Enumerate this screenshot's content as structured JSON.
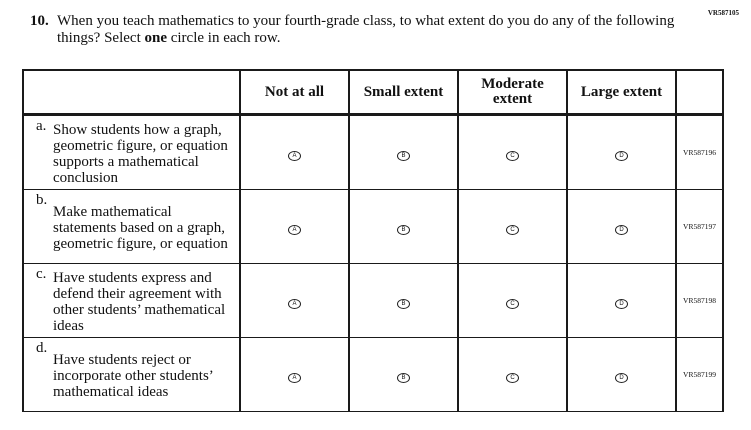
{
  "question_id": "VR587105",
  "question_number": "10.",
  "question_text_before": "When you teach mathematics to your fourth-grade class, to what extent do you do any of the following things? Select ",
  "question_text_bold": "one",
  "question_text_after": " circle in each row.",
  "columns": [
    "Not at all",
    "Small extent",
    "Moderate extent",
    "Large extent"
  ],
  "bubble_letters": [
    "A",
    "B",
    "C",
    "D"
  ],
  "rows": [
    {
      "letter": "a.",
      "text": "Show students how a graph, geometric figure, or equation supports a mathematical conclusion",
      "code": "VR587196"
    },
    {
      "letter": "b.",
      "text": "Make mathematical statements based on a graph, geometric figure, or equation",
      "code": "VR587197"
    },
    {
      "letter": "c.",
      "text": "Have students express and defend their agreement with other students’ mathematical ideas",
      "code": "VR587198"
    },
    {
      "letter": "d.",
      "text": "Have students reject or incorporate other students’ mathematical ideas",
      "code": "VR587199"
    }
  ]
}
